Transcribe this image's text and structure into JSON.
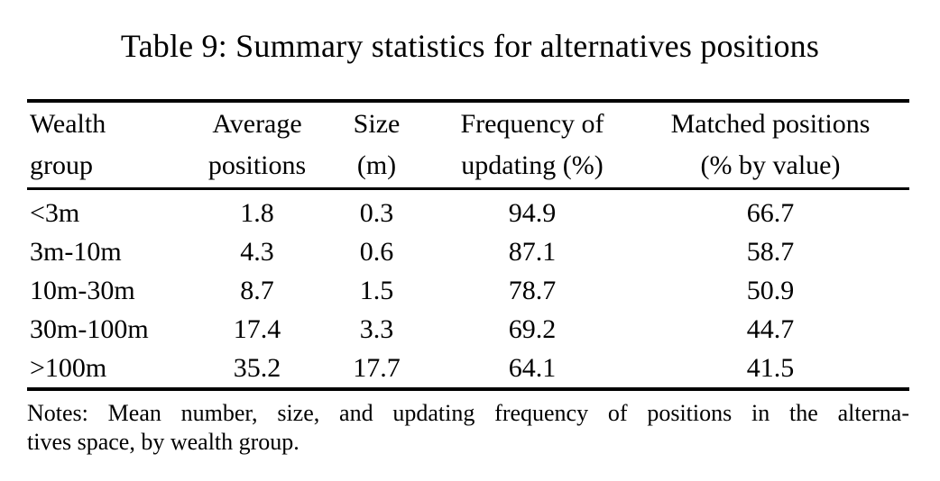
{
  "page": {
    "background": "#ffffff",
    "text_color": "#000000",
    "rule_color": "#000000"
  },
  "title": "Table 9: Summary statistics for alternatives positions",
  "table": {
    "header": {
      "col1": {
        "line1": "Wealth",
        "line2": "group"
      },
      "col2": {
        "line1": "Average",
        "line2": "positions"
      },
      "col3": {
        "line1": "Size",
        "line2": "(m)"
      },
      "col4": {
        "line1": "Frequency of",
        "line2": "updating (%)"
      },
      "col5": {
        "line1": "Matched positions",
        "line2": "(% by value)"
      }
    },
    "rows": [
      {
        "group": "<3m",
        "avg_positions": "1.8",
        "size_m": "0.3",
        "freq_updating": "94.9",
        "matched_pct": "66.7"
      },
      {
        "group": "3m-10m",
        "avg_positions": "4.3",
        "size_m": "0.6",
        "freq_updating": "87.1",
        "matched_pct": "58.7"
      },
      {
        "group": "10m-30m",
        "avg_positions": "8.7",
        "size_m": "1.5",
        "freq_updating": "78.7",
        "matched_pct": "50.9"
      },
      {
        "group": "30m-100m",
        "avg_positions": "17.4",
        "size_m": "3.3",
        "freq_updating": "69.2",
        "matched_pct": "44.7"
      },
      {
        "group": ">100m",
        "avg_positions": "35.2",
        "size_m": "17.7",
        "freq_updating": "64.1",
        "matched_pct": "41.5"
      }
    ]
  },
  "notes": {
    "line1": "Notes: Mean number, size, and updating frequency of positions in the alterna-",
    "line2": "tives space, by wealth group."
  },
  "chart_data": {
    "type": "table",
    "title": "Table 9: Summary statistics for alternatives positions",
    "columns": [
      "Wealth group",
      "Average positions",
      "Size (m)",
      "Frequency of updating (%)",
      "Matched positions (% by value)"
    ],
    "rows": [
      [
        "<3m",
        1.8,
        0.3,
        94.9,
        66.7
      ],
      [
        "3m-10m",
        4.3,
        0.6,
        87.1,
        58.7
      ],
      [
        "10m-30m",
        8.7,
        1.5,
        78.7,
        50.9
      ],
      [
        "30m-100m",
        17.4,
        3.3,
        69.2,
        44.7
      ],
      [
        ">100m",
        35.2,
        17.7,
        64.1,
        41.5
      ]
    ],
    "notes": "Notes: Mean number, size, and updating frequency of positions in the alternatives space, by wealth group."
  }
}
